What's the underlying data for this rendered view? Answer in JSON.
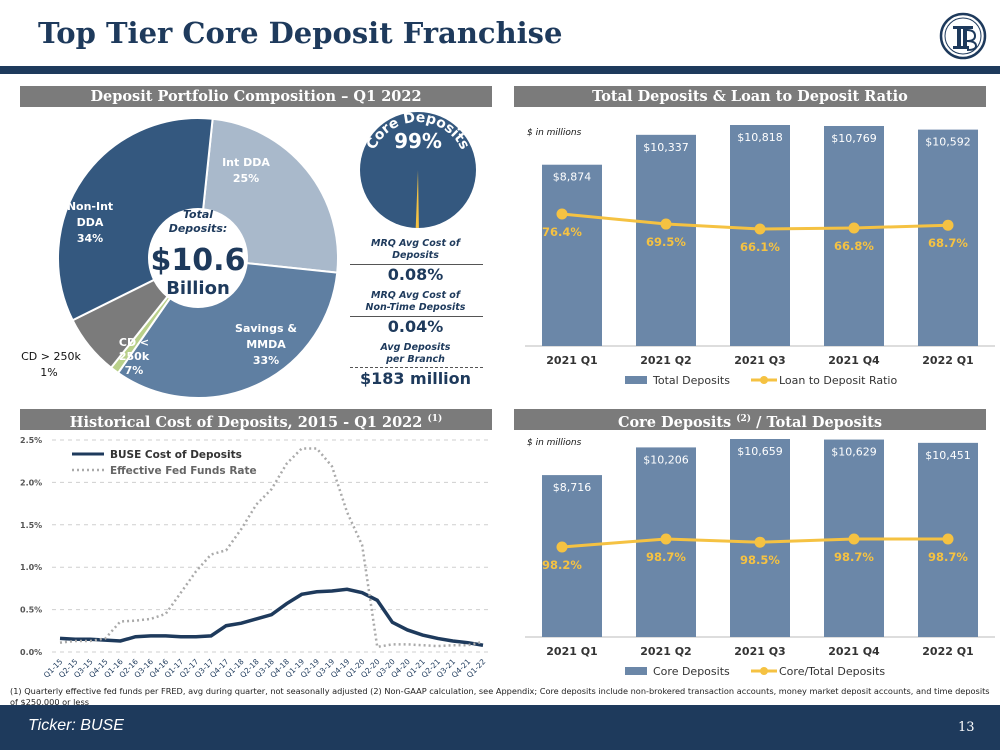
{
  "header": {
    "title": "Top Tier Core Deposit Franchise"
  },
  "sections": {
    "pie_title": "Deposit Portfolio Composition – Q1 2022",
    "deposits_title": "Total Deposits & Loan to Deposit Ratio",
    "history_title": "Historical Cost of Deposits, 2015 - Q1 2022",
    "history_sup": "(1)",
    "core_title_a": "Core Deposits",
    "core_sup": "(2)",
    "core_title_b": "/ Total Deposits"
  },
  "pie": {
    "center_label_1": "Total",
    "center_label_2": "Deposits:",
    "center_value": "$10.6",
    "center_unit": "Billion",
    "slice_labels": {
      "int_dda_1": "Int DDA",
      "int_dda_2": "25%",
      "savings_1": "Savings &",
      "savings_2": "MMDA",
      "savings_3": "33%",
      "cd_small_1": "CD <",
      "cd_small_2": "250k",
      "cd_small_3": "7%",
      "cd_large_1": "CD > 250k",
      "cd_large_2": "1%",
      "nonint_1": "Non-Int",
      "nonint_2": "DDA",
      "nonint_3": "34%"
    }
  },
  "core_gauge": {
    "value": "99%",
    "label": "Core Deposits"
  },
  "metrics": [
    {
      "label_1": "MRQ Avg Cost of",
      "label_2": "Deposits",
      "value": "0.08%"
    },
    {
      "label_1": "MRQ Avg Cost of",
      "label_2": "Non-Time Deposits",
      "value": "0.04%"
    },
    {
      "label_1": "Avg Deposits",
      "label_2": "per Branch",
      "value": "$183 million"
    }
  ],
  "units_note": "$ in millions",
  "footnote": "(1) Quarterly effective fed funds per FRED, avg during quarter, not seasonally adjusted  (2) Non-GAAP calculation, see Appendix; Core deposits include non-brokered transaction accounts, money market deposit accounts, and time deposits of $250,000 or less",
  "footer": {
    "ticker": "Ticker:  BUSE",
    "page": "13"
  },
  "colors": {
    "navy": "#1e3a5c",
    "bar": "#6b87a8",
    "gold": "#f5c242",
    "pie_nonint": "#34587f",
    "pie_int": "#a9b9cb",
    "pie_savings": "#5f7fa2",
    "pie_cd_small": "#7b7b7b",
    "pie_cd_large": "#b9d08a"
  },
  "chart_data": [
    {
      "type": "pie",
      "title": "Deposit Portfolio Composition – Q1 2022",
      "categories": [
        "Int DDA",
        "Savings & MMDA",
        "CD > 250k",
        "CD < 250k",
        "Non-Int DDA"
      ],
      "values": [
        25,
        33,
        1,
        7,
        34
      ]
    },
    {
      "type": "bar",
      "title": "Total Deposits & Loan to Deposit Ratio",
      "categories": [
        "2021 Q1",
        "2021 Q2",
        "2021 Q3",
        "2021 Q4",
        "2022 Q1"
      ],
      "series": [
        {
          "name": "Total Deposits",
          "type": "bar",
          "values": [
            8874,
            10337,
            10818,
            10769,
            10592
          ],
          "labels": [
            "$8,874",
            "$10,337",
            "$10,818",
            "$10,769",
            "$10,592"
          ]
        },
        {
          "name": "Loan to Deposit Ratio",
          "type": "line",
          "values": [
            76.4,
            69.5,
            66.1,
            66.8,
            68.7
          ],
          "labels": [
            "76.4%",
            "69.5%",
            "66.1%",
            "66.8%",
            "68.7%"
          ]
        }
      ],
      "ylabel": "$ in millions"
    },
    {
      "type": "line",
      "title": "Historical Cost of Deposits, 2015 - Q1 2022",
      "categories": [
        "Q1-15",
        "Q2-15",
        "Q3-15",
        "Q4-15",
        "Q1-16",
        "Q2-16",
        "Q3-16",
        "Q4-16",
        "Q1-17",
        "Q2-17",
        "Q3-17",
        "Q4-17",
        "Q1-18",
        "Q2-18",
        "Q3-18",
        "Q4-18",
        "Q1-19",
        "Q2-19",
        "Q3-19",
        "Q4-19",
        "Q1-20",
        "Q2-20",
        "Q3-20",
        "Q4-20",
        "Q1-21",
        "Q2-21",
        "Q3-21",
        "Q4-21",
        "Q1-22"
      ],
      "yticks": [
        "0.0%",
        "0.5%",
        "1.0%",
        "1.5%",
        "2.0%",
        "2.5%"
      ],
      "ylim": [
        0,
        2.5
      ],
      "series": [
        {
          "name": "BUSE Cost of Deposits",
          "values": [
            0.16,
            0.15,
            0.15,
            0.14,
            0.13,
            0.18,
            0.19,
            0.19,
            0.18,
            0.18,
            0.19,
            0.31,
            0.34,
            0.39,
            0.44,
            0.57,
            0.68,
            0.71,
            0.72,
            0.74,
            0.7,
            0.61,
            0.35,
            0.26,
            0.2,
            0.16,
            0.13,
            0.11,
            0.08
          ]
        },
        {
          "name": "Effective Fed Funds Rate",
          "values": [
            0.11,
            0.13,
            0.13,
            0.16,
            0.36,
            0.37,
            0.39,
            0.45,
            0.7,
            0.95,
            1.15,
            1.2,
            1.45,
            1.74,
            1.92,
            2.22,
            2.4,
            2.4,
            2.19,
            1.65,
            1.26,
            0.06,
            0.09,
            0.09,
            0.08,
            0.07,
            0.08,
            0.08,
            0.12
          ]
        }
      ]
    },
    {
      "type": "bar",
      "title": "Core Deposits / Total Deposits",
      "categories": [
        "2021 Q1",
        "2021 Q2",
        "2021 Q3",
        "2021 Q4",
        "2022 Q1"
      ],
      "series": [
        {
          "name": "Core Deposits",
          "type": "bar",
          "values": [
            8716,
            10206,
            10659,
            10629,
            10451
          ],
          "labels": [
            "$8,716",
            "$10,206",
            "$10,659",
            "$10,629",
            "$10,451"
          ]
        },
        {
          "name": "Core/Total Deposits",
          "type": "line",
          "values": [
            98.2,
            98.7,
            98.5,
            98.7,
            98.7
          ],
          "labels": [
            "98.2%",
            "98.7%",
            "98.5%",
            "98.7%",
            "98.7%"
          ]
        }
      ],
      "ylabel": "$ in millions"
    }
  ]
}
